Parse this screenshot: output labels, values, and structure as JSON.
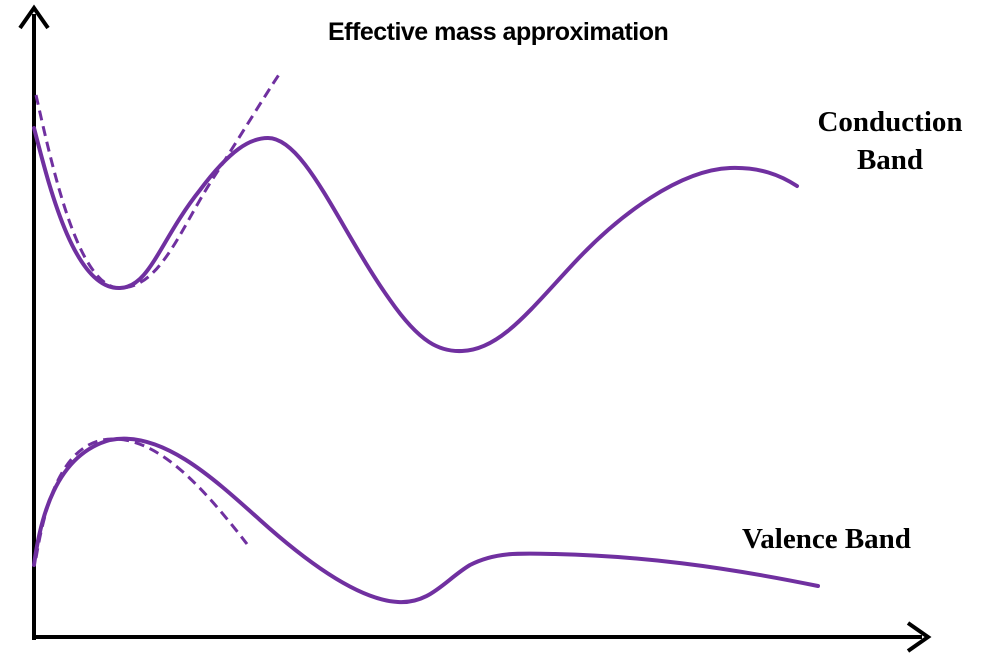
{
  "title": "Effective mass approximation",
  "conduction_band": {
    "line1": "Conduction",
    "line2": "Band"
  },
  "valence_band": {
    "label": "Valence Band"
  },
  "colors": {
    "curve": "#7030A0",
    "axis": "#000000"
  }
}
